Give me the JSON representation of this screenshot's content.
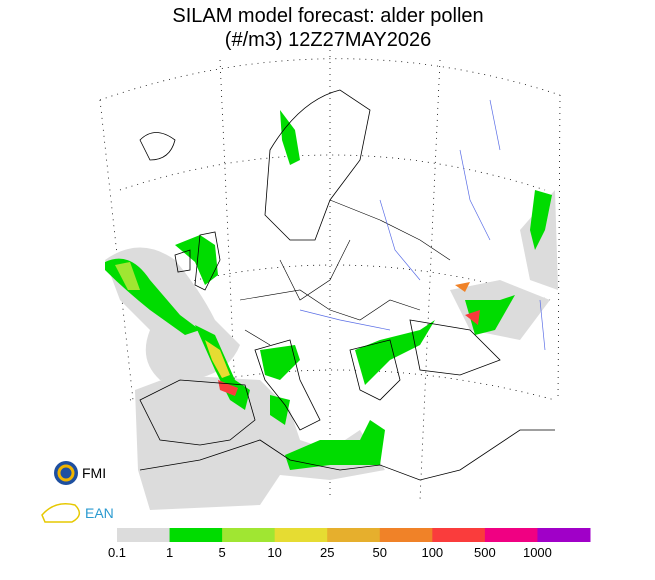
{
  "header": {
    "title_line1": "SILAM model forecast: alder pollen",
    "title_line2": "(#/m3) 12Z27MAY2026"
  },
  "logos": {
    "fmi": "FMI",
    "ean": "EAN"
  },
  "colorbar": {
    "labels": [
      0.1,
      1,
      5,
      10,
      25,
      50,
      100,
      500,
      1000
    ],
    "colors": [
      "#dcdcdc",
      "#00dc00",
      "#a0e632",
      "#e6dc32",
      "#e6af2d",
      "#f08228",
      "#fa3c3c",
      "#f00082",
      "#a000c8"
    ]
  }
}
